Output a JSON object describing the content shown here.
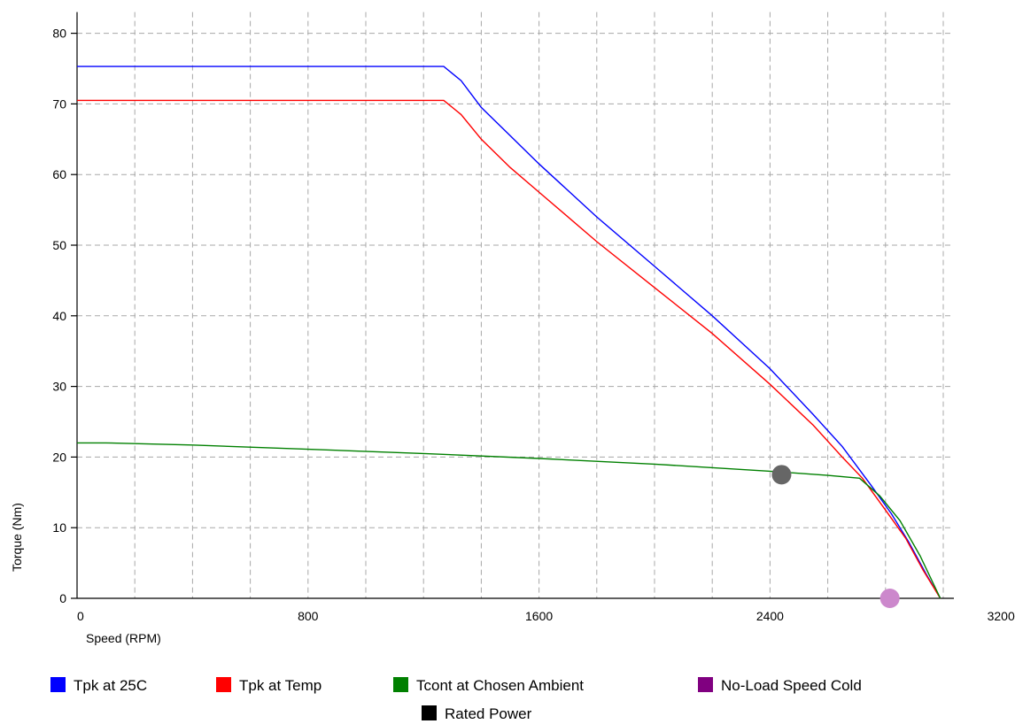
{
  "chart_data": {
    "type": "line",
    "xlabel": "Speed (RPM)",
    "ylabel": "Torque (Nm)",
    "xlim": [
      0,
      3000
    ],
    "ylim": [
      0,
      83
    ],
    "x_ticks": [
      0,
      800,
      1600,
      2400,
      3200
    ],
    "y_ticks": [
      0,
      10,
      20,
      30,
      40,
      50,
      60,
      70,
      80
    ],
    "grid": true,
    "legend_position": "bottom",
    "series": [
      {
        "name": "Tpk at 25C",
        "color": "#0000ff",
        "points": [
          [
            0,
            75.3
          ],
          [
            1270,
            75.3
          ],
          [
            1330,
            73.3
          ],
          [
            1400,
            69.5
          ],
          [
            1500,
            65.5
          ],
          [
            1600,
            61.5
          ],
          [
            1800,
            54
          ],
          [
            2000,
            47
          ],
          [
            2200,
            40
          ],
          [
            2400,
            32.5
          ],
          [
            2550,
            26
          ],
          [
            2650,
            21.5
          ],
          [
            2750,
            16
          ],
          [
            2820,
            12
          ],
          [
            2880,
            8
          ],
          [
            2940,
            3.5
          ],
          [
            2990,
            0
          ]
        ]
      },
      {
        "name": "Tpk at Temp",
        "color": "#ff0000",
        "points": [
          [
            0,
            70.5
          ],
          [
            1270,
            70.5
          ],
          [
            1330,
            68.5
          ],
          [
            1400,
            65
          ],
          [
            1500,
            61
          ],
          [
            1600,
            57.5
          ],
          [
            1800,
            50.5
          ],
          [
            2000,
            44
          ],
          [
            2200,
            37.5
          ],
          [
            2400,
            30.3
          ],
          [
            2550,
            24.5
          ],
          [
            2650,
            20
          ],
          [
            2720,
            17
          ],
          [
            2800,
            12.5
          ],
          [
            2870,
            8.5
          ],
          [
            2930,
            4
          ],
          [
            2990,
            0
          ]
        ]
      },
      {
        "name": "Tcont at Chosen Ambient",
        "color": "#008000",
        "points": [
          [
            0,
            22
          ],
          [
            100,
            22
          ],
          [
            400,
            21.7
          ],
          [
            800,
            21.1
          ],
          [
            1200,
            20.5
          ],
          [
            1600,
            19.8
          ],
          [
            2000,
            19
          ],
          [
            2400,
            18
          ],
          [
            2600,
            17.4
          ],
          [
            2710,
            17
          ],
          [
            2780,
            14.5
          ],
          [
            2850,
            11
          ],
          [
            2920,
            6
          ],
          [
            2990,
            0
          ]
        ]
      },
      {
        "name": "No-Load Speed Cold",
        "color": "#800080",
        "marker_color": "#cc88cc",
        "points": [
          [
            2815,
            0
          ]
        ]
      },
      {
        "name": "Rated Power",
        "color": "#000000",
        "marker_color": "#666666",
        "points": [
          [
            2440,
            17.5
          ]
        ]
      }
    ]
  }
}
